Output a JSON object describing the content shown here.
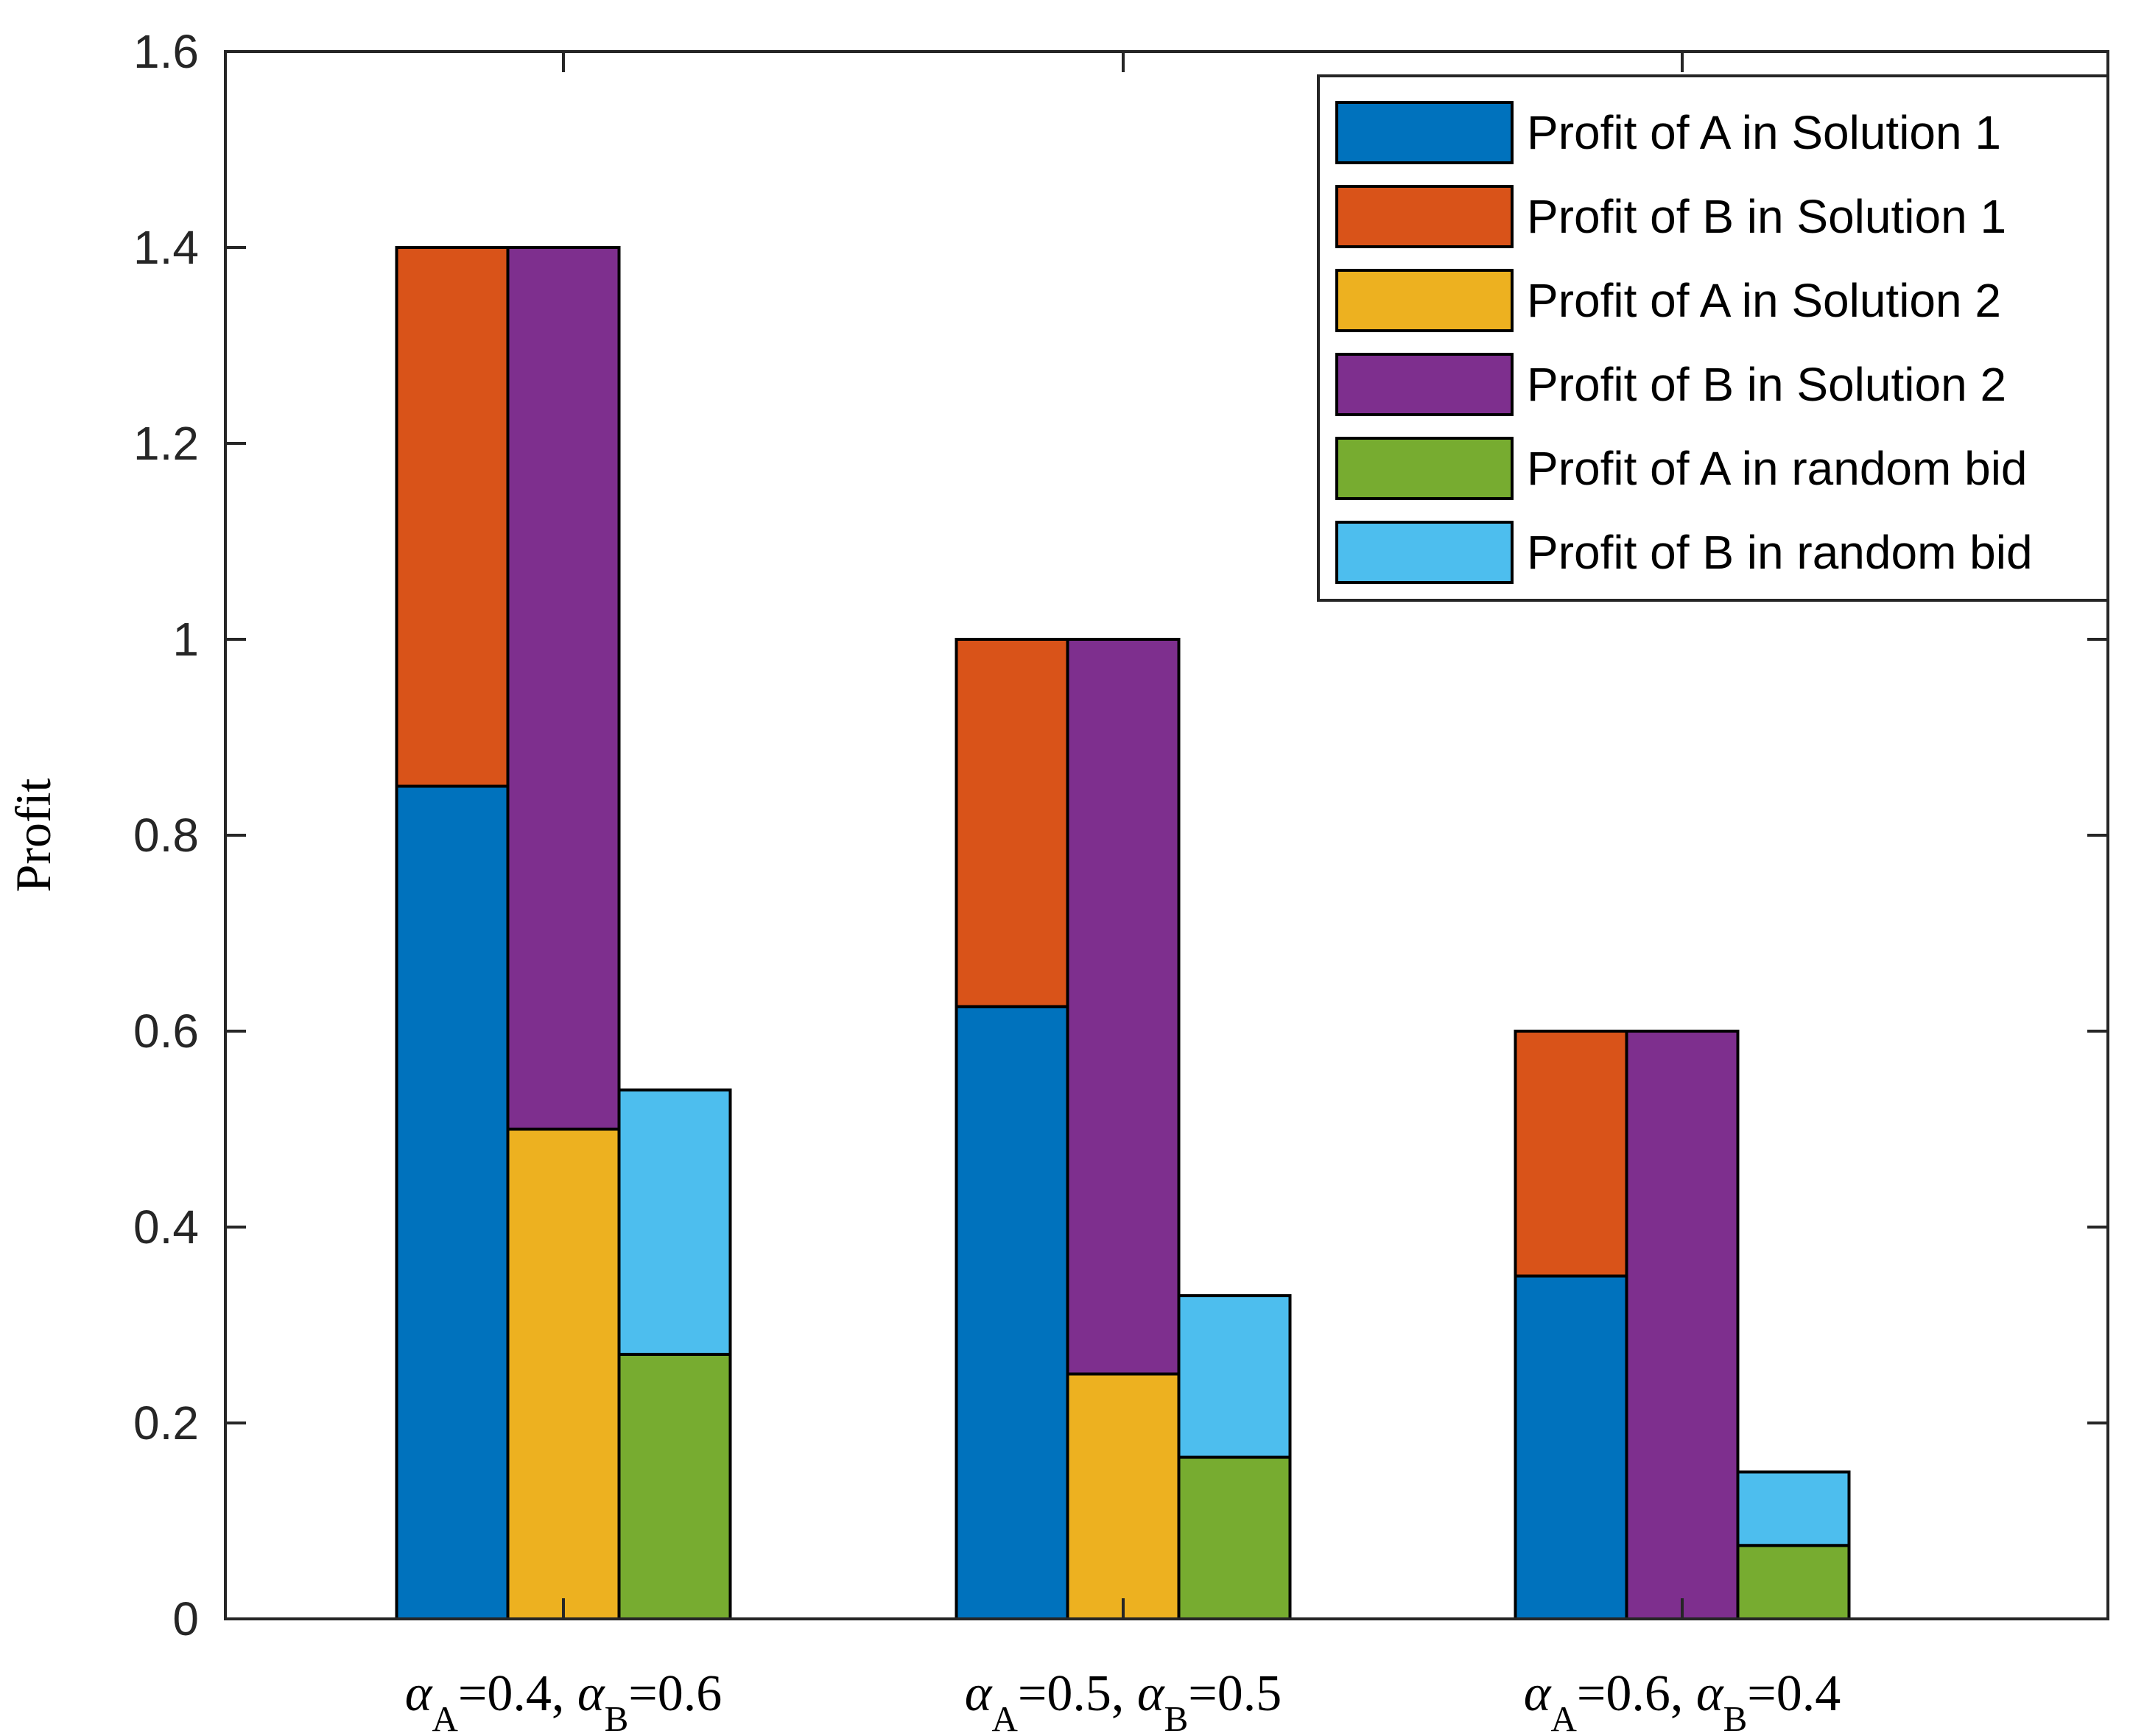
{
  "chart_data": {
    "type": "bar",
    "stacked": true,
    "ylabel": "Profit",
    "xlabel": "",
    "title": "",
    "ylim": [
      0,
      1.6
    ],
    "yticks": [
      0,
      0.2,
      0.4,
      0.6,
      0.8,
      1,
      1.2,
      1.4,
      1.6
    ],
    "ytick_labels": [
      "0",
      "0.2",
      "0.4",
      "0.6",
      "0.8",
      "1",
      "1.2",
      "1.4",
      "1.6"
    ],
    "grid": false,
    "legend_position": "top-right",
    "groups": [
      {
        "label": {
          "a": "α",
          "sa": "A",
          "eq1": "=0.4, ",
          "b": "α",
          "sb": "B",
          "eq2": "=0.6"
        },
        "bars": [
          {
            "name": "Solution 1",
            "stacks": [
              {
                "series": "Profit of A in Solution 1",
                "value": 0.85
              },
              {
                "series": "Profit of B in Solution 1",
                "value": 0.55
              }
            ]
          },
          {
            "name": "Solution 2",
            "stacks": [
              {
                "series": "Profit of A in Solution 2",
                "value": 0.5
              },
              {
                "series": "Profit of B in Solution 2",
                "value": 0.9
              }
            ]
          },
          {
            "name": "random bid",
            "stacks": [
              {
                "series": "Profit of A in random bid",
                "value": 0.27
              },
              {
                "series": "Profit of B in random bid",
                "value": 0.27
              }
            ]
          }
        ]
      },
      {
        "label": {
          "a": "α",
          "sa": "A",
          "eq1": "=0.5, ",
          "b": "α",
          "sb": "B",
          "eq2": "=0.5"
        },
        "bars": [
          {
            "name": "Solution 1",
            "stacks": [
              {
                "series": "Profit of A in Solution 1",
                "value": 0.625
              },
              {
                "series": "Profit of B in Solution 1",
                "value": 0.375
              }
            ]
          },
          {
            "name": "Solution 2",
            "stacks": [
              {
                "series": "Profit of A in Solution 2",
                "value": 0.25
              },
              {
                "series": "Profit of B in Solution 2",
                "value": 0.75
              }
            ]
          },
          {
            "name": "random bid",
            "stacks": [
              {
                "series": "Profit of A in random bid",
                "value": 0.165
              },
              {
                "series": "Profit of B in random bid",
                "value": 0.165
              }
            ]
          }
        ]
      },
      {
        "label": {
          "a": "α",
          "sa": "A",
          "eq1": "=0.6, ",
          "b": "α",
          "sb": "B",
          "eq2": "=0.4"
        },
        "bars": [
          {
            "name": "Solution 1",
            "stacks": [
              {
                "series": "Profit of A in Solution 1",
                "value": 0.35
              },
              {
                "series": "Profit of B in Solution 1",
                "value": 0.25
              }
            ]
          },
          {
            "name": "Solution 2",
            "stacks": [
              {
                "series": "Profit of A in Solution 2",
                "value": 0.0
              },
              {
                "series": "Profit of B in Solution 2",
                "value": 0.6
              }
            ]
          },
          {
            "name": "random bid",
            "stacks": [
              {
                "series": "Profit of A in random bid",
                "value": 0.075
              },
              {
                "series": "Profit of B in random bid",
                "value": 0.075
              }
            ]
          }
        ]
      }
    ],
    "series": [
      {
        "name": "Profit of A in Solution 1",
        "color": "#0072BD"
      },
      {
        "name": "Profit of B in Solution 1",
        "color": "#D95319"
      },
      {
        "name": "Profit of A in Solution 2",
        "color": "#EDB120"
      },
      {
        "name": "Profit of B in Solution 2",
        "color": "#7E2F8E"
      },
      {
        "name": "Profit of A in random bid",
        "color": "#77AC30"
      },
      {
        "name": "Profit of B in random bid",
        "color": "#4DBEEE"
      }
    ]
  }
}
